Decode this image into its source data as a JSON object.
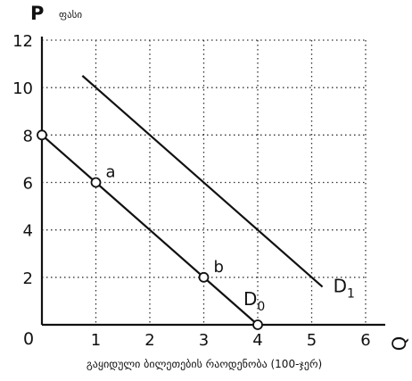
{
  "chart_data": {
    "type": "line",
    "title": "",
    "ylabel": "P",
    "ylabel_note": "ფასი",
    "xlabel": "Q",
    "x_caption": "გაყიდული ბილეთების რაოდენობა (100-ჯერ)",
    "origin_label": "0",
    "xlim": [
      0,
      6
    ],
    "ylim": [
      0,
      12
    ],
    "x_ticks": [
      1,
      2,
      3,
      4,
      5,
      6
    ],
    "y_ticks": [
      2,
      4,
      6,
      8,
      10,
      12
    ],
    "grid": true,
    "grid_style": "dotted",
    "series": [
      {
        "name": "D0",
        "label_main": "D",
        "label_sub": "0",
        "points": [
          [
            0,
            8
          ],
          [
            4,
            0
          ]
        ],
        "color": "#111111"
      },
      {
        "name": "D1",
        "label_main": "D",
        "label_sub": "1",
        "points": [
          [
            0.75,
            10.5
          ],
          [
            5.2,
            1.6
          ]
        ],
        "color": "#111111"
      }
    ],
    "markers": [
      {
        "label": "",
        "x": 0,
        "y": 8
      },
      {
        "label": "a",
        "x": 1,
        "y": 6
      },
      {
        "label": "b",
        "x": 3,
        "y": 2
      },
      {
        "label": "",
        "x": 4,
        "y": 0
      }
    ]
  }
}
